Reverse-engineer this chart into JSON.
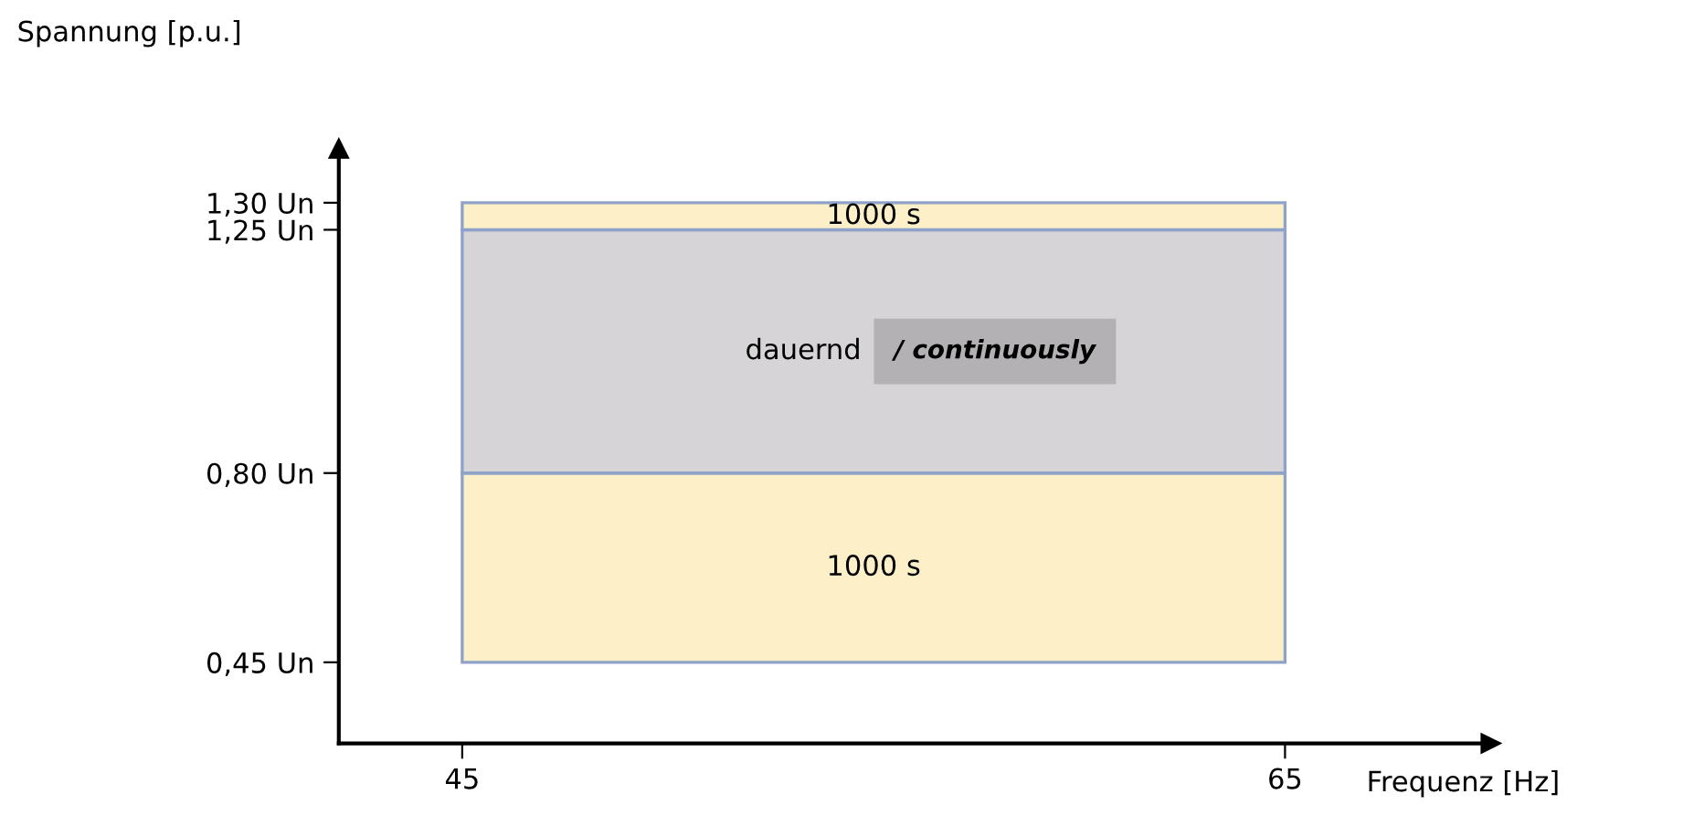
{
  "chart_data": {
    "type": "line",
    "xlabel": "Frequenz [Hz]",
    "ylabel": "Spannung [p.u.]",
    "xlim": [
      42,
      70
    ],
    "ylim": [
      0.3,
      1.4
    ],
    "xticks": [
      45,
      65
    ],
    "yticks": [
      {
        "value": 0.45,
        "label": "0,45 Un"
      },
      {
        "value": 0.8,
        "label": "0,80 Un"
      },
      {
        "value": 1.25,
        "label": "1,25 Un"
      },
      {
        "value": 1.3,
        "label": "1,30 Un"
      }
    ],
    "bands": [
      {
        "axis": "y",
        "from": 0.45,
        "to": 0.8,
        "label": "1000 s",
        "color": "#fdf0c8"
      },
      {
        "axis": "y",
        "from": 0.8,
        "to": 1.25,
        "label": "dauernd",
        "color": "#d7d4d7"
      },
      {
        "axis": "y",
        "from": 1.25,
        "to": 1.3,
        "label": "1000 s",
        "color": "#fdf0c8"
      }
    ],
    "annotations": [
      "/ continuously"
    ]
  }
}
